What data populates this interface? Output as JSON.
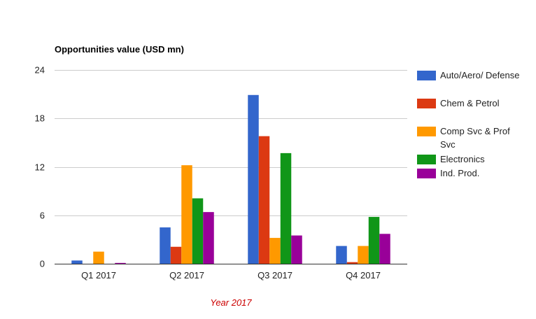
{
  "chart_data": {
    "type": "bar",
    "title": "Opportunities value (USD mn)",
    "xlabel": "Year 2017",
    "ylabel": "",
    "categories": [
      "Q1 2017",
      "Q2 2017",
      "Q3 2017",
      "Q4 2017"
    ],
    "ylim": [
      0,
      24
    ],
    "yticks": [
      0,
      6,
      12,
      18,
      24
    ],
    "grid": true,
    "legend_position": "right",
    "series": [
      {
        "name": "Auto/Aero/ Defense",
        "color": "#3366cc",
        "values": [
          0.4,
          4.5,
          20.9,
          2.2
        ]
      },
      {
        "name": "Chem & Petrol",
        "color": "#dc3912",
        "values": [
          0.0,
          2.1,
          15.8,
          0.2
        ]
      },
      {
        "name": "Comp Svc & Prof Svc",
        "color": "#ff9900",
        "values": [
          1.5,
          12.2,
          3.2,
          2.2
        ]
      },
      {
        "name": "Electronics",
        "color": "#109618",
        "values": [
          0.0,
          8.1,
          13.7,
          5.8
        ]
      },
      {
        "name": "Ind. Prod.",
        "color": "#990099",
        "values": [
          0.1,
          6.4,
          3.5,
          3.7
        ]
      }
    ],
    "colors": {
      "axis": "#333333",
      "grid": "#cccccc",
      "xlabel": "#cc0000",
      "text": "#222222"
    }
  }
}
